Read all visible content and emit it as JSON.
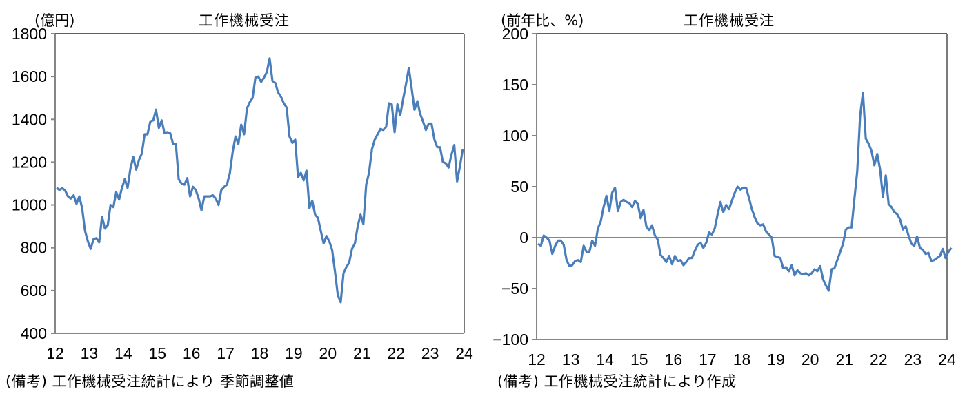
{
  "colors": {
    "line": "#4a7ebb",
    "axis": "#868686",
    "frame": "#000000",
    "background": "#ffffff"
  },
  "chart_data": [
    {
      "type": "line",
      "title": "工作機械受注",
      "ylabel": "(億円)",
      "xlabel": "",
      "note": "(備考) 工作機械受注統計により 季節調整値",
      "ylim": [
        400,
        1800
      ],
      "yticks": [
        400,
        600,
        800,
        1000,
        1200,
        1400,
        1600,
        1800
      ],
      "xlim": [
        2012,
        2024
      ],
      "xticks": [
        "12",
        "13",
        "14",
        "15",
        "16",
        "17",
        "18",
        "19",
        "20",
        "21",
        "22",
        "23",
        "24"
      ],
      "grid": false,
      "legend": null,
      "frequency": "monthly (Jan 2012 – Nov 2023, estimated)",
      "series": [
        {
          "name": "工作機械受注",
          "values": [
            1080,
            1070,
            1078,
            1068,
            1040,
            1030,
            1045,
            1005,
            1040,
            985,
            880,
            830,
            795,
            840,
            845,
            825,
            945,
            890,
            905,
            1000,
            990,
            1060,
            1025,
            1080,
            1120,
            1080,
            1170,
            1225,
            1165,
            1210,
            1240,
            1330,
            1330,
            1390,
            1395,
            1445,
            1360,
            1395,
            1335,
            1340,
            1335,
            1285,
            1285,
            1120,
            1100,
            1095,
            1125,
            1040,
            1085,
            1070,
            1030,
            975,
            1040,
            1040,
            1040,
            1045,
            1030,
            1000,
            1070,
            1085,
            1095,
            1150,
            1250,
            1320,
            1285,
            1375,
            1330,
            1450,
            1480,
            1500,
            1595,
            1600,
            1575,
            1595,
            1620,
            1685,
            1580,
            1570,
            1525,
            1505,
            1475,
            1455,
            1320,
            1290,
            1305,
            1130,
            1150,
            1115,
            1160,
            985,
            1020,
            955,
            940,
            880,
            820,
            855,
            830,
            790,
            690,
            580,
            545,
            680,
            710,
            730,
            795,
            820,
            900,
            955,
            910,
            1095,
            1150,
            1260,
            1305,
            1330,
            1355,
            1350,
            1365,
            1475,
            1470,
            1340,
            1470,
            1420,
            1495,
            1565,
            1640,
            1545,
            1445,
            1485,
            1425,
            1390,
            1350,
            1380,
            1380,
            1305,
            1270,
            1270,
            1200,
            1195,
            1175,
            1235,
            1280,
            1110,
            1180,
            1260
          ]
        }
      ]
    },
    {
      "type": "line",
      "title": "工作機械受注",
      "ylabel": "(前年比、%)",
      "xlabel": "",
      "note": "(備考) 工作機械受注統計により作成",
      "ylim": [
        -100,
        200
      ],
      "yticks": [
        -100,
        -50,
        0,
        50,
        100,
        150,
        200
      ],
      "xlim": [
        2012,
        2024
      ],
      "xticks": [
        "12",
        "13",
        "14",
        "15",
        "16",
        "17",
        "18",
        "19",
        "20",
        "21",
        "22",
        "23",
        "24"
      ],
      "grid": false,
      "zero_line": true,
      "legend": null,
      "frequency": "monthly (Jan 2012 – Nov 2023, estimated)",
      "series": [
        {
          "name": "工作機械受注 前年比",
          "values": [
            -6,
            -8,
            2,
            0,
            -3,
            -16,
            -8,
            -3,
            -3,
            -7,
            -22,
            -28,
            -27,
            -23,
            -22,
            -24,
            -8,
            -14,
            -14,
            -3,
            -8,
            9,
            16,
            30,
            41,
            26,
            44,
            49,
            26,
            35,
            37,
            35,
            34,
            30,
            36,
            33,
            19,
            27,
            11,
            7,
            12,
            2,
            -2,
            -17,
            -20,
            -24,
            -18,
            -26,
            -18,
            -23,
            -22,
            -27,
            -24,
            -20,
            -20,
            -13,
            -7,
            -5,
            -10,
            -5,
            5,
            3,
            9,
            23,
            35,
            25,
            32,
            28,
            36,
            44,
            50,
            47,
            49,
            49,
            39,
            28,
            20,
            14,
            12,
            13,
            6,
            3,
            0,
            -18,
            -19,
            -20,
            -30,
            -29,
            -33,
            -27,
            -37,
            -32,
            -35,
            -36,
            -35,
            -37,
            -35,
            -31,
            -33,
            -28,
            -41,
            -47,
            -52,
            -31,
            -30,
            -22,
            -14,
            -6,
            8,
            10,
            10,
            38,
            65,
            120,
            142,
            97,
            92,
            85,
            71,
            82,
            67,
            40,
            61,
            33,
            30,
            25,
            23,
            18,
            8,
            11,
            2,
            -6,
            -8,
            1,
            -10,
            -12,
            -16,
            -15,
            -23,
            -22,
            -20,
            -18,
            -11,
            -20,
            -14,
            -10
          ]
        }
      ]
    }
  ],
  "left": {
    "unit": "(億円)",
    "title": "工作機械受注",
    "note": "(備考) 工作機械受注統計により 季節調整値"
  },
  "right": {
    "unit": "(前年比、%)",
    "title": "工作機械受注",
    "note": "(備考) 工作機械受注統計により作成"
  }
}
